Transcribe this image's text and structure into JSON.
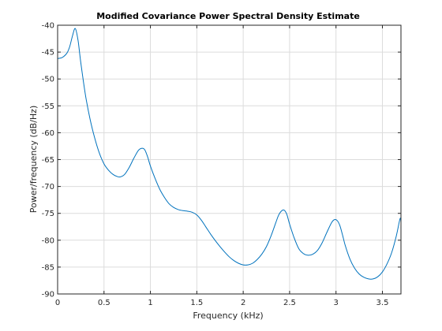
{
  "chart_data": {
    "type": "line",
    "title": "Modified Covariance Power Spectral Density Estimate",
    "xlabel": "Frequency (kHz)",
    "ylabel": "Power/frequency (dB/Hz)",
    "xlim": [
      0,
      3.7
    ],
    "ylim": [
      -90,
      -40
    ],
    "xticks": [
      0,
      0.5,
      1,
      1.5,
      2,
      2.5,
      3,
      3.5
    ],
    "xtick_labels": [
      "0",
      "0.5",
      "1",
      "1.5",
      "2",
      "2.5",
      "3",
      "3.5"
    ],
    "yticks": [
      -90,
      -85,
      -80,
      -75,
      -70,
      -65,
      -60,
      -55,
      -50,
      -45,
      -40
    ],
    "ytick_labels": [
      "-90",
      "-85",
      "-80",
      "-75",
      "-70",
      "-65",
      "-60",
      "-55",
      "-50",
      "-45",
      "-40"
    ],
    "grid": true,
    "line_color": "#0072bd",
    "series": [
      {
        "x": [
          0,
          0.05,
          0.1,
          0.13,
          0.16,
          0.19,
          0.22,
          0.25,
          0.3,
          0.35,
          0.4,
          0.45,
          0.5,
          0.55,
          0.6,
          0.65,
          0.68,
          0.72,
          0.77,
          0.82,
          0.87,
          0.91,
          0.94,
          0.97,
          1.0,
          1.05,
          1.1,
          1.15,
          1.2,
          1.25,
          1.3,
          1.35,
          1.4,
          1.45,
          1.5,
          1.55,
          1.6,
          1.65,
          1.7,
          1.75,
          1.8,
          1.85,
          1.9,
          1.95,
          2.0,
          2.05,
          2.1,
          2.15,
          2.2,
          2.25,
          2.3,
          2.35,
          2.38,
          2.41,
          2.44,
          2.47,
          2.5,
          2.55,
          2.6,
          2.65,
          2.7,
          2.75,
          2.8,
          2.85,
          2.9,
          2.95,
          2.98,
          3.01,
          3.04,
          3.07,
          3.1,
          3.15,
          3.2,
          3.25,
          3.3,
          3.35,
          3.4,
          3.45,
          3.5,
          3.55,
          3.6,
          3.65,
          3.69,
          3.7
        ],
        "y": [
          -46.2,
          -46.0,
          -45.2,
          -44.0,
          -42.0,
          -40.6,
          -42.8,
          -47.0,
          -53.0,
          -57.5,
          -61.0,
          -63.8,
          -65.8,
          -67.0,
          -67.8,
          -68.2,
          -68.2,
          -67.8,
          -66.5,
          -64.8,
          -63.3,
          -62.9,
          -63.2,
          -64.5,
          -66.2,
          -68.5,
          -70.5,
          -72.0,
          -73.2,
          -73.9,
          -74.3,
          -74.5,
          -74.6,
          -74.8,
          -75.3,
          -76.3,
          -77.6,
          -78.9,
          -80.1,
          -81.2,
          -82.2,
          -83.1,
          -83.8,
          -84.3,
          -84.6,
          -84.6,
          -84.3,
          -83.6,
          -82.6,
          -81.2,
          -79.2,
          -76.8,
          -75.4,
          -74.6,
          -74.4,
          -75.2,
          -77.0,
          -79.6,
          -81.6,
          -82.5,
          -82.8,
          -82.6,
          -81.9,
          -80.5,
          -78.6,
          -76.8,
          -76.2,
          -76.3,
          -77.2,
          -79.0,
          -81.0,
          -83.5,
          -85.2,
          -86.3,
          -86.9,
          -87.2,
          -87.2,
          -86.8,
          -85.9,
          -84.4,
          -82.3,
          -79.2,
          -76.0,
          -76.6
        ]
      }
    ]
  }
}
